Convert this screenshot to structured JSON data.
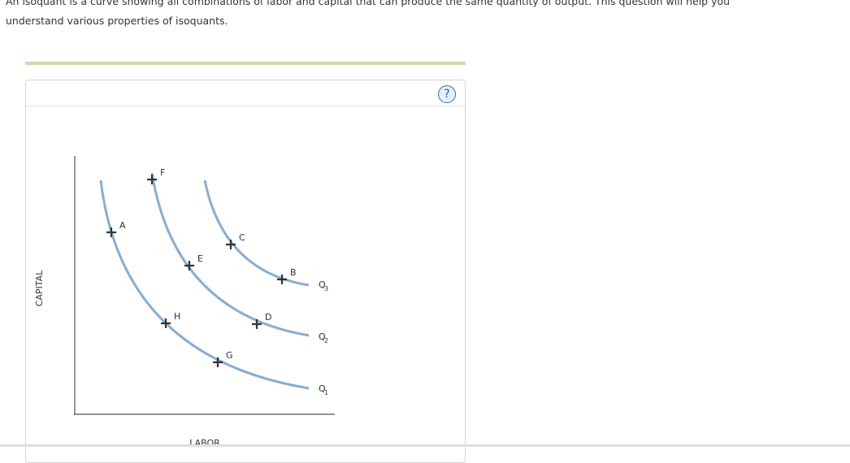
{
  "question": {
    "text": "An isoquant is a curve showing all combinations of labor and capital that can produce the same quantity of output. This question will help you understand various properties of isoquants."
  },
  "help": {
    "label": "?"
  },
  "diagram": {
    "y_axis_label": "CAPITAL",
    "x_axis_label": "LABOR",
    "curves": [
      {
        "letter": "Q",
        "subscript": "3"
      },
      {
        "letter": "Q",
        "subscript": "2"
      },
      {
        "letter": "Q",
        "subscript": "1"
      }
    ],
    "points": [
      "A",
      "F",
      "E",
      "C",
      "B",
      "H",
      "D",
      "G"
    ]
  }
}
